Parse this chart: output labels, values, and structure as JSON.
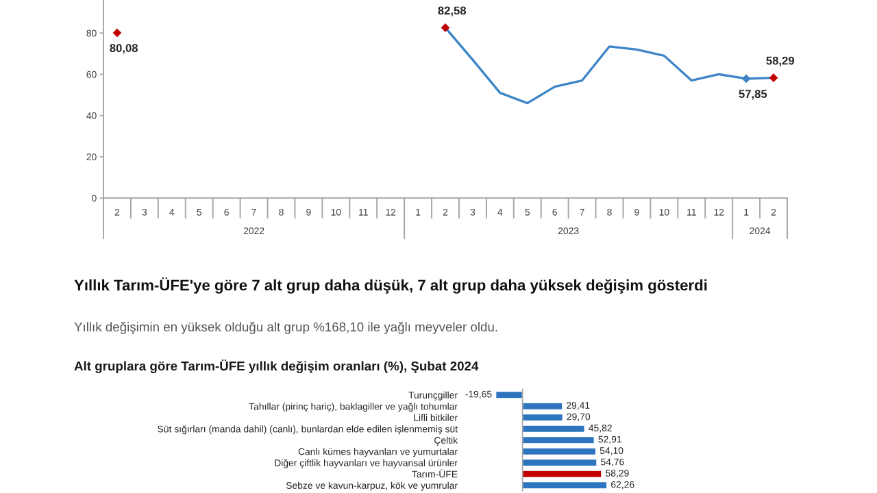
{
  "chart_data": [
    {
      "type": "line",
      "categories": [
        "2",
        "3",
        "4",
        "5",
        "6",
        "7",
        "8",
        "9",
        "10",
        "11",
        "12",
        "1",
        "2",
        "3",
        "4",
        "5",
        "6",
        "7",
        "8",
        "9",
        "10",
        "11",
        "12",
        "1",
        "2"
      ],
      "annotations": [
        "2022",
        "2023",
        "2024"
      ],
      "series": [
        {
          "type": "line",
          "color": "#3d85c8",
          "line_style": "solid",
          "values": [
            null,
            null,
            null,
            null,
            null,
            null,
            null,
            null,
            null,
            null,
            null,
            null,
            82.58,
            67,
            51,
            46,
            54,
            57,
            73.5,
            72,
            69,
            57,
            60,
            57.85,
            58.29
          ]
        },
        {
          "type": "scatter",
          "marker": "diamond",
          "values": [
            80.08,
            null,
            null,
            null,
            null,
            null,
            null,
            null,
            null,
            null,
            null,
            null,
            82.58,
            null,
            null,
            null,
            null,
            null,
            null,
            null,
            null,
            null,
            null,
            57.85,
            58.29
          ],
          "colors": [
            "#c00000",
            null,
            null,
            null,
            null,
            null,
            null,
            null,
            null,
            null,
            null,
            null,
            "#c00000",
            null,
            null,
            null,
            null,
            null,
            null,
            null,
            null,
            null,
            null,
            "#3d85c8",
            "#c00000"
          ],
          "value_labels": [
            "80,08",
            null,
            null,
            null,
            null,
            null,
            null,
            null,
            null,
            null,
            null,
            null,
            "82,58",
            null,
            null,
            null,
            null,
            null,
            null,
            null,
            null,
            null,
            null,
            "57,85",
            "58,29"
          ]
        }
      ],
      "ylim": [
        0,
        96
      ],
      "yticks": [
        0,
        20,
        40,
        60,
        80
      ]
    },
    {
      "type": "bar",
      "orientation": "horizontal",
      "title": "Alt gruplara göre Tarım-ÜFE yıllık değişim oranları (%), Şubat 2024",
      "annotations": [
        "Yıllık Tarım-ÜFE'ye göre 7 alt grup daha düşük, 7 alt grup daha yüksek değişim gösterdi",
        "Yıllık değişimin en yüksek olduğu alt grup %168,10 ile yağlı meyveler oldu."
      ],
      "categories": [
        "Turunçgiller",
        "Tahıllar (pirinç hariç), baklagiller ve yağlı tohumlar",
        "Lifli bitkiler",
        "Süt sığırları (manda dahil) (canlı), bunlardan elde edilen işlenmemiş süt",
        "Çeltik",
        "Canlı kümes hayvanları ve yumurtalar",
        "Diğer çiftlik hayvanları ve hayvansal ürünler",
        "Tarım-ÜFE",
        "Sebze ve kavun-karpuz, kök ve yumrular"
      ],
      "values": [
        -19.65,
        29.41,
        29.7,
        45.82,
        52.91,
        54.1,
        54.76,
        58.29,
        62.26
      ],
      "colors": [
        "#2e75c0",
        "#2e75c0",
        "#2e75c0",
        "#2e75c0",
        "#2e75c0",
        "#2e75c0",
        "#2e75c0",
        "#c00000",
        "#2e75c0"
      ],
      "value_labels": [
        "-19,65",
        "29,41",
        "29,70",
        "45,82",
        "52,91",
        "54,10",
        "54,76",
        "58,29",
        "62,26"
      ]
    }
  ]
}
